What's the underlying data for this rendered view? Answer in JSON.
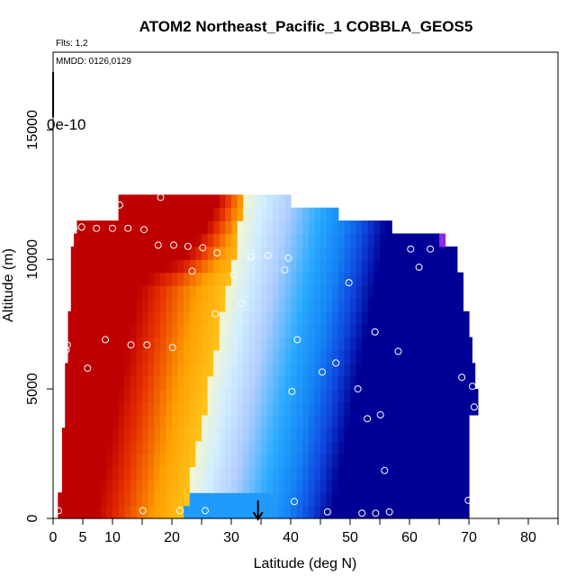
{
  "chart_data": {
    "type": "heatmap",
    "title": "ATOM2 Northeast_Pacific_1 COBBLA_GEOS5",
    "flights_label": "Flts: 1,2",
    "dates_label": "MMDD: 0126,0129",
    "scale_label": "0e-10",
    "xlabel": "Latitude (deg N)",
    "ylabel": "Altitude (m)",
    "xlim": [
      0,
      85
    ],
    "ylim": [
      0,
      18000
    ],
    "x_ticks": [
      0,
      5,
      10,
      20,
      30,
      40,
      50,
      60,
      70,
      80
    ],
    "x_minor_ticks": [
      15,
      25,
      35,
      45,
      55,
      65,
      75,
      85
    ],
    "y_ticks": [
      0,
      5000,
      10000,
      15000
    ],
    "arrow_latitude": 34.5,
    "colors": {
      "very_high": "#c80000",
      "high": "#e83000",
      "mid_high": "#ffa500",
      "orange_yellow": "#ffc21a",
      "neutral": "#ffffd0",
      "low_light": "#bfe6ff",
      "low": "#1ea8ff",
      "very_low": "#1050e0",
      "extreme_low": "#00009c",
      "violet": "#8a2be2"
    },
    "observations": [
      {
        "x": 0.9,
        "y": 300
      },
      {
        "x": 2.2,
        "y": 6500
      },
      {
        "x": 2.4,
        "y": 6700
      },
      {
        "x": 3.5,
        "y": 11200
      },
      {
        "x": 4.8,
        "y": 11250
      },
      {
        "x": 5.8,
        "y": 5800
      },
      {
        "x": 7.3,
        "y": 11200
      },
      {
        "x": 8.8,
        "y": 6900
      },
      {
        "x": 10.0,
        "y": 11200
      },
      {
        "x": 11.2,
        "y": 12100
      },
      {
        "x": 12.6,
        "y": 11200
      },
      {
        "x": 13.1,
        "y": 6700
      },
      {
        "x": 15.1,
        "y": 300
      },
      {
        "x": 15.3,
        "y": 11150
      },
      {
        "x": 15.8,
        "y": 6700
      },
      {
        "x": 17.7,
        "y": 10550
      },
      {
        "x": 18.1,
        "y": 12400
      },
      {
        "x": 20.3,
        "y": 10550
      },
      {
        "x": 20.1,
        "y": 6600
      },
      {
        "x": 21.3,
        "y": 300
      },
      {
        "x": 22.7,
        "y": 10500
      },
      {
        "x": 23.4,
        "y": 9550
      },
      {
        "x": 25.2,
        "y": 10450
      },
      {
        "x": 25.6,
        "y": 300
      },
      {
        "x": 27.3,
        "y": 7900
      },
      {
        "x": 27.6,
        "y": 10250
      },
      {
        "x": 30.4,
        "y": 9400
      },
      {
        "x": 31.8,
        "y": 8300
      },
      {
        "x": 33.3,
        "y": 10100
      },
      {
        "x": 36.2,
        "y": 10150
      },
      {
        "x": 39.0,
        "y": 9600
      },
      {
        "x": 39.6,
        "y": 10050
      },
      {
        "x": 40.2,
        "y": 4900
      },
      {
        "x": 40.6,
        "y": 650
      },
      {
        "x": 41.1,
        "y": 6900
      },
      {
        "x": 45.3,
        "y": 5650
      },
      {
        "x": 46.2,
        "y": 250
      },
      {
        "x": 47.6,
        "y": 6000
      },
      {
        "x": 49.8,
        "y": 9100
      },
      {
        "x": 51.3,
        "y": 5000
      },
      {
        "x": 52.0,
        "y": 200
      },
      {
        "x": 52.9,
        "y": 3850
      },
      {
        "x": 54.2,
        "y": 7200
      },
      {
        "x": 54.3,
        "y": 200
      },
      {
        "x": 55.1,
        "y": 4000
      },
      {
        "x": 55.8,
        "y": 1850
      },
      {
        "x": 56.6,
        "y": 250
      },
      {
        "x": 58.1,
        "y": 6450
      },
      {
        "x": 60.2,
        "y": 10400
      },
      {
        "x": 61.6,
        "y": 9700
      },
      {
        "x": 63.5,
        "y": 10400
      },
      {
        "x": 68.8,
        "y": 5450
      },
      {
        "x": 69.9,
        "y": 700
      },
      {
        "x": 70.6,
        "y": 5100
      },
      {
        "x": 70.9,
        "y": 4300
      }
    ]
  }
}
